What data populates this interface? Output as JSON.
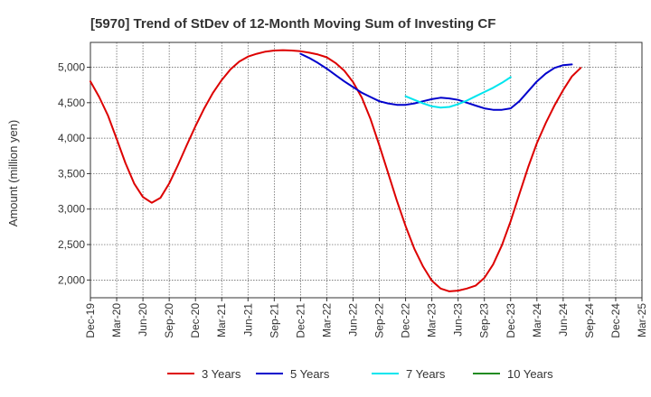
{
  "chart_data": {
    "type": "line",
    "title": "[5970]  Trend of StDev of 12-Month Moving Sum of Investing CF",
    "xlabel": "",
    "ylabel": "Amount (million yen)",
    "ylim": [
      1750,
      5350
    ],
    "y_ticks": [
      2000,
      2500,
      3000,
      3500,
      4000,
      4500,
      5000
    ],
    "y_tick_labels": [
      "2,000",
      "2,500",
      "3,000",
      "3,500",
      "4,000",
      "4,500",
      "5,000"
    ],
    "x_tick_labels": [
      "Dec-19",
      "Mar-20",
      "Jun-20",
      "Sep-20",
      "Dec-20",
      "Mar-21",
      "Jun-21",
      "Sep-21",
      "Dec-21",
      "Mar-22",
      "Jun-22",
      "Sep-22",
      "Dec-22",
      "Mar-23",
      "Jun-23",
      "Sep-23",
      "Dec-23",
      "Mar-24",
      "Jun-24",
      "Sep-24",
      "Dec-24",
      "Mar-25"
    ],
    "grid": true,
    "legend_position": "bottom",
    "series": [
      {
        "name": "3 Years",
        "color": "#dd0000",
        "points": [
          [
            "Dec-19",
            4800
          ],
          [
            "Jan-20",
            4580
          ],
          [
            "Feb-20",
            4320
          ],
          [
            "Mar-20",
            3990
          ],
          [
            "Apr-20",
            3650
          ],
          [
            "May-20",
            3360
          ],
          [
            "Jun-20",
            3170
          ],
          [
            "Jul-20",
            3090
          ],
          [
            "Aug-20",
            3160
          ],
          [
            "Sep-20",
            3360
          ],
          [
            "Oct-20",
            3620
          ],
          [
            "Nov-20",
            3900
          ],
          [
            "Dec-20",
            4170
          ],
          [
            "Jan-21",
            4420
          ],
          [
            "Feb-21",
            4640
          ],
          [
            "Mar-21",
            4820
          ],
          [
            "Apr-21",
            4970
          ],
          [
            "May-21",
            5080
          ],
          [
            "Jun-21",
            5150
          ],
          [
            "Jul-21",
            5190
          ],
          [
            "Aug-21",
            5220
          ],
          [
            "Sep-21",
            5235
          ],
          [
            "Oct-21",
            5240
          ],
          [
            "Nov-21",
            5235
          ],
          [
            "Dec-21",
            5225
          ],
          [
            "Jan-22",
            5205
          ],
          [
            "Feb-22",
            5180
          ],
          [
            "Mar-22",
            5140
          ],
          [
            "Apr-22",
            5060
          ],
          [
            "May-22",
            4950
          ],
          [
            "Jun-22",
            4790
          ],
          [
            "Jul-22",
            4570
          ],
          [
            "Aug-22",
            4270
          ],
          [
            "Sep-22",
            3900
          ],
          [
            "Oct-22",
            3510
          ],
          [
            "Nov-22",
            3120
          ],
          [
            "Dec-22",
            2760
          ],
          [
            "Jan-23",
            2440
          ],
          [
            "Feb-23",
            2190
          ],
          [
            "Mar-23",
            1990
          ],
          [
            "Apr-23",
            1880
          ],
          [
            "May-23",
            1840
          ],
          [
            "Jun-23",
            1850
          ],
          [
            "Jul-23",
            1880
          ],
          [
            "Aug-23",
            1920
          ],
          [
            "Sep-23",
            2030
          ],
          [
            "Oct-23",
            2220
          ],
          [
            "Nov-23",
            2490
          ],
          [
            "Dec-23",
            2830
          ],
          [
            "Jan-24",
            3210
          ],
          [
            "Feb-24",
            3590
          ],
          [
            "Mar-24",
            3930
          ],
          [
            "Apr-24",
            4210
          ],
          [
            "May-24",
            4460
          ],
          [
            "Jun-24",
            4680
          ],
          [
            "Jul-24",
            4870
          ],
          [
            "Aug-24",
            4990
          ]
        ]
      },
      {
        "name": "5 Years",
        "color": "#0000cc",
        "points": [
          [
            "Dec-21",
            5190
          ],
          [
            "Jan-22",
            5130
          ],
          [
            "Feb-22",
            5060
          ],
          [
            "Mar-22",
            4980
          ],
          [
            "Apr-22",
            4890
          ],
          [
            "May-22",
            4800
          ],
          [
            "Jun-22",
            4720
          ],
          [
            "Jul-22",
            4640
          ],
          [
            "Aug-22",
            4580
          ],
          [
            "Sep-22",
            4520
          ],
          [
            "Oct-22",
            4490
          ],
          [
            "Nov-22",
            4470
          ],
          [
            "Dec-22",
            4470
          ],
          [
            "Jan-23",
            4490
          ],
          [
            "Feb-23",
            4520
          ],
          [
            "Mar-23",
            4550
          ],
          [
            "Apr-23",
            4570
          ],
          [
            "May-23",
            4560
          ],
          [
            "Jun-23",
            4540
          ],
          [
            "Jul-23",
            4500
          ],
          [
            "Aug-23",
            4460
          ],
          [
            "Sep-23",
            4420
          ],
          [
            "Oct-23",
            4400
          ],
          [
            "Nov-23",
            4400
          ],
          [
            "Dec-23",
            4420
          ],
          [
            "Jan-24",
            4520
          ],
          [
            "Feb-24",
            4660
          ],
          [
            "Mar-24",
            4800
          ],
          [
            "Apr-24",
            4910
          ],
          [
            "May-24",
            4990
          ],
          [
            "Jun-24",
            5030
          ],
          [
            "Jul-24",
            5040
          ]
        ]
      },
      {
        "name": "7 Years",
        "color": "#00e5ee",
        "points": [
          [
            "Dec-22",
            4590
          ],
          [
            "Jan-23",
            4540
          ],
          [
            "Feb-23",
            4490
          ],
          [
            "Mar-23",
            4450
          ],
          [
            "Apr-23",
            4430
          ],
          [
            "May-23",
            4440
          ],
          [
            "Jun-23",
            4480
          ],
          [
            "Jul-23",
            4530
          ],
          [
            "Aug-23",
            4590
          ],
          [
            "Sep-23",
            4650
          ],
          [
            "Oct-23",
            4710
          ],
          [
            "Nov-23",
            4780
          ],
          [
            "Dec-23",
            4860
          ]
        ]
      },
      {
        "name": "10 Years",
        "color": "#228b22",
        "points": []
      }
    ]
  }
}
